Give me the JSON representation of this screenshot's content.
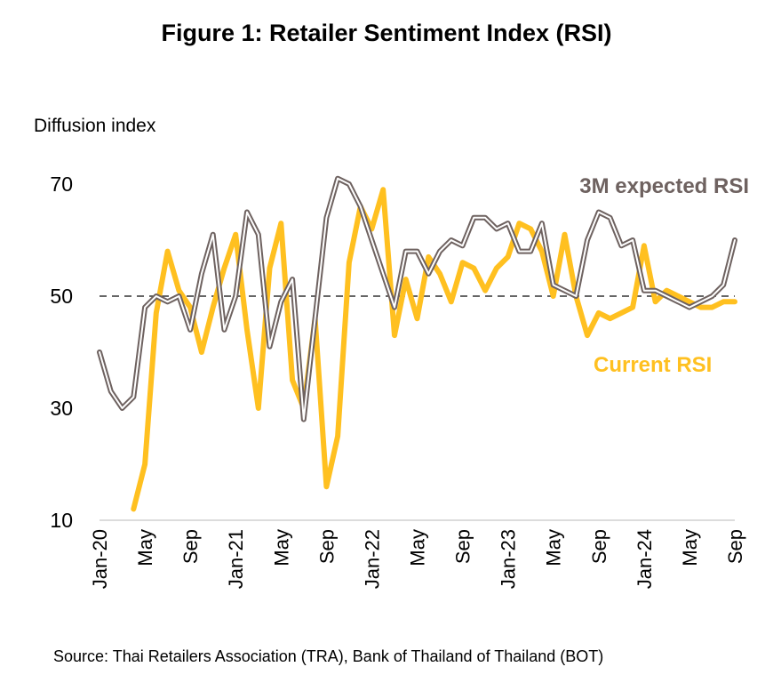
{
  "figure": {
    "title": "Figure 1: Retailer Sentiment Index (RSI)",
    "y_axis_label": "Diffusion index",
    "source": "Source:  Thai Retailers Association (TRA), Bank of Thailand of Thailand (BOT)"
  },
  "chart_data": {
    "type": "line",
    "ylabel": "Diffusion index",
    "ylim": [
      10,
      70
    ],
    "yticks": [
      10,
      30,
      50,
      70
    ],
    "xtick_labels": [
      "Jan-20",
      "May",
      "Sep",
      "Jan-21",
      "May",
      "Sep",
      "Jan-22",
      "May",
      "Sep",
      "Jan-23",
      "May",
      "Sep",
      "Jan-24",
      "May",
      "Sep"
    ],
    "reference_line": {
      "value": 50,
      "style": "dashed"
    },
    "grid": false,
    "x": [
      "Jan-20",
      "Feb-20",
      "Mar-20",
      "Apr-20",
      "May-20",
      "Jun-20",
      "Jul-20",
      "Aug-20",
      "Sep-20",
      "Oct-20",
      "Nov-20",
      "Dec-20",
      "Jan-21",
      "Feb-21",
      "Mar-21",
      "Apr-21",
      "May-21",
      "Jun-21",
      "Jul-21",
      "Aug-21",
      "Sep-21",
      "Oct-21",
      "Nov-21",
      "Dec-21",
      "Jan-22",
      "Feb-22",
      "Mar-22",
      "Apr-22",
      "May-22",
      "Jun-22",
      "Jul-22",
      "Aug-22",
      "Sep-22",
      "Oct-22",
      "Nov-22",
      "Dec-22",
      "Jan-23",
      "Feb-23",
      "Mar-23",
      "Apr-23",
      "May-23",
      "Jun-23",
      "Jul-23",
      "Aug-23",
      "Sep-23",
      "Oct-23",
      "Nov-23",
      "Dec-23",
      "Jan-24",
      "Feb-24",
      "Mar-24",
      "Apr-24",
      "May-24",
      "Jun-24",
      "Jul-24",
      "Aug-24",
      "Sep-24"
    ],
    "series": [
      {
        "name": "Current RSI",
        "color": "#FFC020",
        "values": [
          null,
          null,
          null,
          12,
          20,
          47,
          58,
          51,
          48,
          40,
          48,
          55,
          61,
          44,
          30,
          55,
          63,
          35,
          30,
          46,
          16,
          25,
          56,
          66,
          62,
          69,
          43,
          53,
          46,
          57,
          54,
          49,
          56,
          55,
          51,
          55,
          57,
          63,
          62,
          58,
          50,
          61,
          50,
          43,
          47,
          46,
          47,
          48,
          59,
          49,
          51,
          50,
          49,
          48,
          48,
          49,
          49
        ]
      },
      {
        "name": "3M expected RSI",
        "color": "#6E6260",
        "values": [
          40,
          33,
          30,
          32,
          48,
          50,
          49,
          50,
          44,
          54,
          61,
          44,
          50,
          65,
          61,
          41,
          49,
          53,
          28,
          46,
          64,
          71,
          70,
          66,
          60,
          54,
          48,
          58,
          58,
          54,
          58,
          60,
          59,
          64,
          64,
          62,
          63,
          58,
          58,
          63,
          52,
          51,
          50,
          60,
          65,
          64,
          59,
          60,
          51,
          51,
          50,
          49,
          48,
          49,
          50,
          52,
          60
        ]
      }
    ]
  }
}
